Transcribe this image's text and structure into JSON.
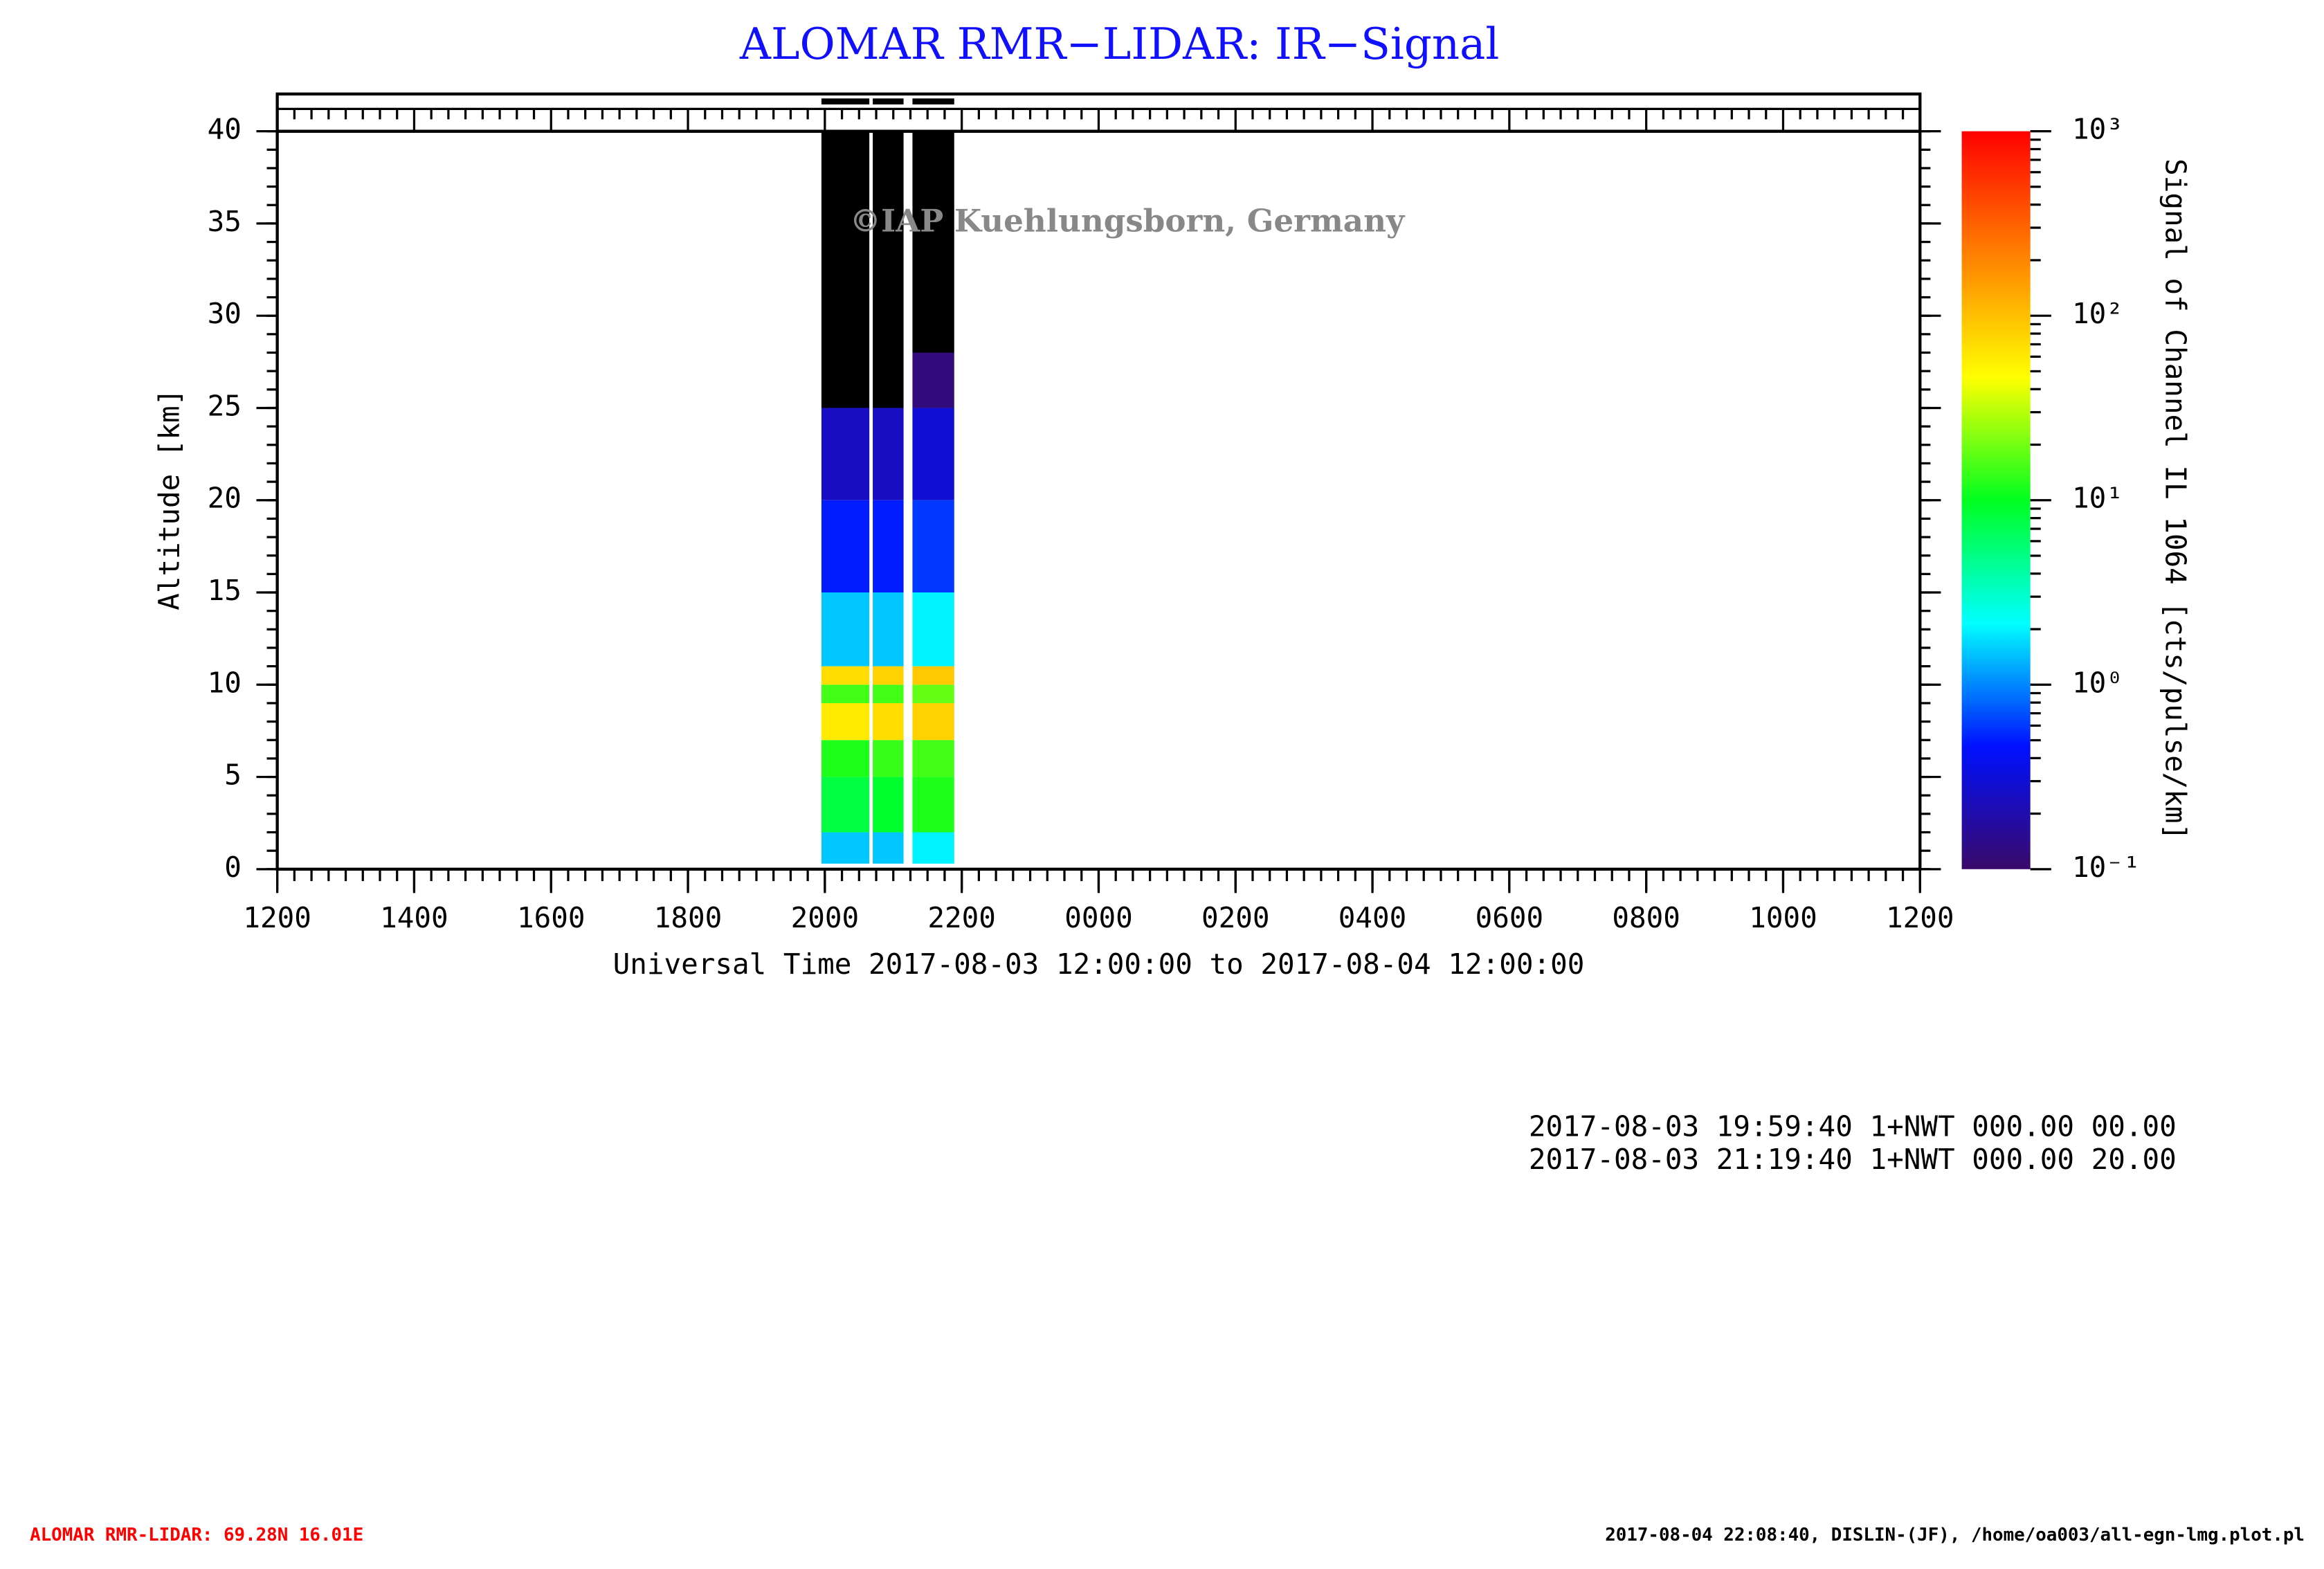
{
  "chart_data": {
    "type": "heatmap",
    "title": "ALOMAR RMR−LIDAR: IR−Signal",
    "watermark": "©IAP Kuehlungsborn, Germany",
    "ylabel": "Altitude [km]",
    "xlabel": "Universal Time 2017-08-03 12:00:00 to 2017-08-04 12:00:00",
    "colorbar_label": "Signal of Channel IL 1064 [cts/pulse/km]",
    "xlim": [
      0,
      24
    ],
    "xticks": [
      {
        "value": 0,
        "label": "1200"
      },
      {
        "value": 2,
        "label": "1400"
      },
      {
        "value": 4,
        "label": "1600"
      },
      {
        "value": 6,
        "label": "1800"
      },
      {
        "value": 8,
        "label": "2000"
      },
      {
        "value": 10,
        "label": "2200"
      },
      {
        "value": 12,
        "label": "0000"
      },
      {
        "value": 14,
        "label": "0200"
      },
      {
        "value": 16,
        "label": "0400"
      },
      {
        "value": 18,
        "label": "0600"
      },
      {
        "value": 20,
        "label": "0800"
      },
      {
        "value": 22,
        "label": "1000"
      },
      {
        "value": 24,
        "label": "1200"
      }
    ],
    "ylim": [
      0,
      40
    ],
    "yticks": [
      0,
      5,
      10,
      15,
      20,
      25,
      30,
      35,
      40
    ],
    "clim": [
      0.1,
      1000
    ],
    "color_log_scale": true,
    "cticks": [
      {
        "value": 0.1,
        "label": "10⁻¹"
      },
      {
        "value": 1,
        "label": "10⁰"
      },
      {
        "value": 10,
        "label": "10¹"
      },
      {
        "value": 100,
        "label": "10²"
      },
      {
        "value": 1000,
        "label": "10³"
      }
    ],
    "colormap": [
      "#3a0a6a",
      "#0010ff",
      "#00ffff",
      "#00ff20",
      "#ffff00",
      "#ff8000",
      "#ff0000"
    ],
    "under_color": "#000000",
    "x_edges": [
      [
        7.95,
        8.65
      ],
      [
        8.7,
        9.15
      ],
      [
        9.28,
        9.89
      ]
    ],
    "y_edges": [
      0.3,
      2,
      5,
      7,
      9,
      10,
      11,
      15,
      20,
      25,
      28,
      40
    ],
    "z": [
      [
        1.5,
        8,
        12,
        60,
        15,
        70,
        1.5,
        0.5,
        0.25,
        0.09,
        0.02
      ],
      [
        1.5,
        9,
        14,
        70,
        15,
        80,
        1.5,
        0.5,
        0.25,
        0.09,
        0.02
      ],
      [
        2,
        12,
        15,
        80,
        18,
        90,
        2,
        0.6,
        0.3,
        0.12,
        0.05
      ]
    ],
    "info_lines": [
      "2017-08-03 19:59:40 1+NWT 000.00 00.00",
      "2017-08-03 21:19:40 1+NWT 000.00 20.00"
    ],
    "footer_left": "ALOMAR RMR-LIDAR: 69.28N 16.01E",
    "footer_right": "2017-08-04 22:08:40, DISLIN-(JF), /home/oa003/all-egn-lmg.plot.pl"
  }
}
